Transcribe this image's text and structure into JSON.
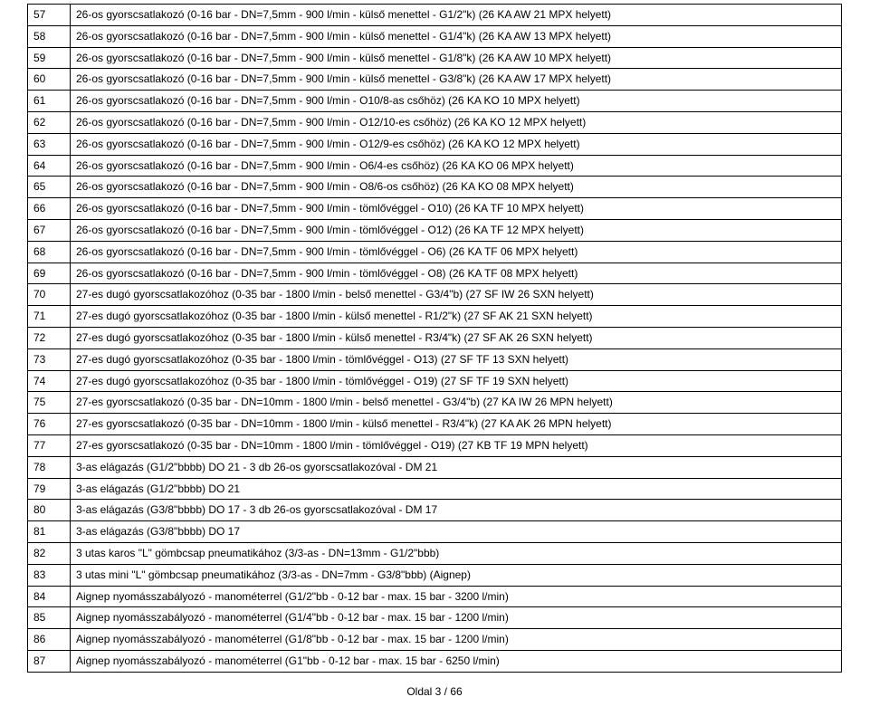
{
  "footer": "Oldal 3 / 66",
  "rows": [
    {
      "n": "57",
      "t": "26-os gyorscsatlakozó (0-16 bar - DN=7,5mm - 900 l/min - külső menettel - G1/2\"k) (26 KA AW 21 MPX helyett)"
    },
    {
      "n": "58",
      "t": "26-os gyorscsatlakozó (0-16 bar - DN=7,5mm - 900 l/min - külső menettel - G1/4\"k) (26 KA AW 13 MPX helyett)"
    },
    {
      "n": "59",
      "t": "26-os gyorscsatlakozó (0-16 bar - DN=7,5mm - 900 l/min - külső menettel - G1/8\"k) (26 KA AW 10 MPX helyett)"
    },
    {
      "n": "60",
      "t": "26-os gyorscsatlakozó (0-16 bar - DN=7,5mm - 900 l/min - külső menettel - G3/8\"k) (26 KA AW 17 MPX helyett)"
    },
    {
      "n": "61",
      "t": "26-os gyorscsatlakozó (0-16 bar - DN=7,5mm - 900 l/min - O10/8-as csőhöz) (26 KA KO 10 MPX helyett)"
    },
    {
      "n": "62",
      "t": "26-os gyorscsatlakozó (0-16 bar - DN=7,5mm - 900 l/min - O12/10-es csőhöz) (26 KA KO 12 MPX helyett)"
    },
    {
      "n": "63",
      "t": "26-os gyorscsatlakozó (0-16 bar - DN=7,5mm - 900 l/min - O12/9-es csőhöz) (26 KA KO 12 MPX helyett)"
    },
    {
      "n": "64",
      "t": "26-os gyorscsatlakozó (0-16 bar - DN=7,5mm - 900 l/min - O6/4-es csőhöz) (26 KA KO 06 MPX helyett)"
    },
    {
      "n": "65",
      "t": "26-os gyorscsatlakozó (0-16 bar - DN=7,5mm - 900 l/min - O8/6-os csőhöz) (26 KA KO 08 MPX helyett)"
    },
    {
      "n": "66",
      "t": "26-os gyorscsatlakozó (0-16 bar - DN=7,5mm - 900 l/min - tömlővéggel - O10) (26 KA TF 10 MPX helyett)"
    },
    {
      "n": "67",
      "t": "26-os gyorscsatlakozó (0-16 bar - DN=7,5mm - 900 l/min - tömlővéggel - O12) (26 KA TF 12 MPX helyett)"
    },
    {
      "n": "68",
      "t": "26-os gyorscsatlakozó (0-16 bar - DN=7,5mm - 900 l/min - tömlővéggel - O6) (26 KA TF 06 MPX helyett)"
    },
    {
      "n": "69",
      "t": "26-os gyorscsatlakozó (0-16 bar - DN=7,5mm - 900 l/min - tömlővéggel - O8) (26 KA TF 08 MPX helyett)"
    },
    {
      "n": "70",
      "t": "27-es dugó gyorscsatlakozóhoz (0-35 bar - 1800 l/min - belső menettel - G3/4\"b) (27 SF IW 26 SXN helyett)"
    },
    {
      "n": "71",
      "t": "27-es dugó gyorscsatlakozóhoz (0-35 bar - 1800 l/min - külső menettel - R1/2\"k) (27 SF AK 21 SXN helyett)"
    },
    {
      "n": "72",
      "t": "27-es dugó gyorscsatlakozóhoz (0-35 bar - 1800 l/min - külső menettel - R3/4\"k) (27 SF AK 26 SXN helyett)"
    },
    {
      "n": "73",
      "t": "27-es dugó gyorscsatlakozóhoz (0-35 bar - 1800 l/min - tömlővéggel - O13) (27 SF TF 13 SXN helyett)"
    },
    {
      "n": "74",
      "t": "27-es dugó gyorscsatlakozóhoz (0-35 bar - 1800 l/min - tömlővéggel - O19) (27 SF TF 19 SXN helyett)"
    },
    {
      "n": "75",
      "t": "27-es gyorscsatlakozó (0-35 bar - DN=10mm - 1800 l/min - belső menettel - G3/4\"b) (27 KA IW 26 MPN helyett)"
    },
    {
      "n": "76",
      "t": "27-es gyorscsatlakozó (0-35 bar - DN=10mm - 1800 l/min - külső menettel - R3/4\"k) (27 KA AK 26 MPN helyett)"
    },
    {
      "n": "77",
      "t": "27-es gyorscsatlakozó (0-35 bar - DN=10mm - 1800 l/min - tömlővéggel - O19) (27 KB TF 19 MPN helyett)"
    },
    {
      "n": "78",
      "t": "3-as elágazás (G1/2\"bbbb) DO 21 - 3 db 26-os gyorscsatlakozóval - DM 21"
    },
    {
      "n": "79",
      "t": "3-as elágazás (G1/2\"bbbb) DO 21"
    },
    {
      "n": "80",
      "t": "3-as elágazás (G3/8\"bbbb) DO 17 - 3 db 26-os gyorscsatlakozóval - DM 17"
    },
    {
      "n": "81",
      "t": "3-as elágazás (G3/8\"bbbb) DO 17"
    },
    {
      "n": "82",
      "t": "3 utas karos \"L\" gömbcsap pneumatikához (3/3-as - DN=13mm - G1/2\"bbb)"
    },
    {
      "n": "83",
      "t": "3 utas mini \"L\" gömbcsap pneumatikához (3/3-as - DN=7mm - G3/8\"bbb) (Aignep)"
    },
    {
      "n": "84",
      "t": "Aignep nyomásszabályozó - manométerrel (G1/2\"bb - 0-12 bar - max. 15 bar - 3200 l/min)"
    },
    {
      "n": "85",
      "t": "Aignep nyomásszabályozó - manométerrel (G1/4\"bb - 0-12 bar - max. 15 bar - 1200 l/min)"
    },
    {
      "n": "86",
      "t": "Aignep nyomásszabályozó - manométerrel (G1/8\"bb - 0-12 bar - max. 15 bar - 1200 l/min)"
    },
    {
      "n": "87",
      "t": "Aignep nyomásszabályozó - manométerrel (G1\"bb - 0-12 bar - max. 15 bar - 6250 l/min)"
    }
  ]
}
